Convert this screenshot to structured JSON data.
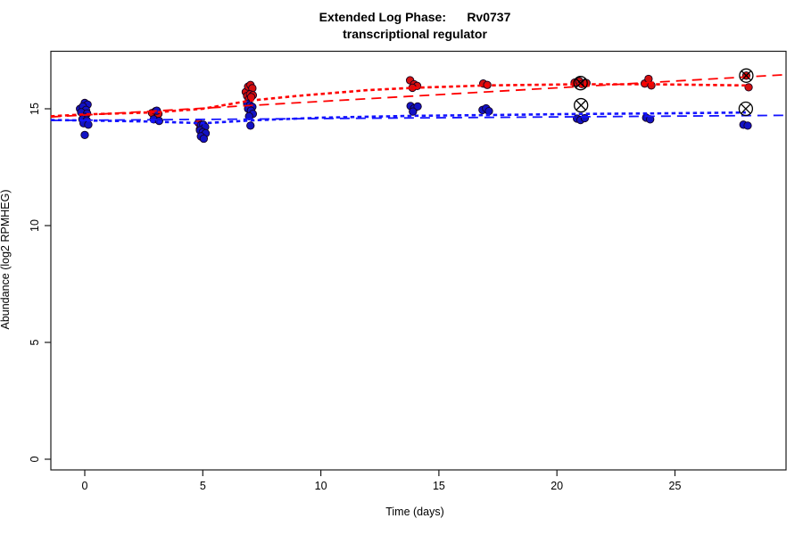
{
  "header": {
    "title_line1": "Extended Log Phase:      Rv0737",
    "title_line2": "transcriptional regulator"
  },
  "chart_data": {
    "type": "scatter",
    "title": "Extended Log Phase: Rv0737 transcriptional regulator",
    "xlabel": "Time  (days)",
    "ylabel": "Abundance  (log2 RPMHEG)",
    "xlim": [
      -1.44,
      29.7
    ],
    "ylim_shown": [
      0,
      16.8
    ],
    "x_ticks": [
      0,
      5,
      10,
      15,
      20,
      25
    ],
    "y_ticks": [
      0,
      5,
      10,
      15
    ],
    "grid": false,
    "legend": "none",
    "colors": {
      "red_point_fill": "#d40f0f",
      "blue_point_fill": "#1212c4",
      "point_stroke": "#14001e",
      "red_line": "#ff0000",
      "blue_line": "#1414ff",
      "axis": "#1a1a1a",
      "outlier_marker": "#000000"
    },
    "series": [
      {
        "name": "red-condition",
        "color_key": "red_point_fill",
        "points": [
          [
            2.85,
            14.82
          ],
          [
            3.0,
            14.9
          ],
          [
            3.12,
            14.78
          ],
          [
            4.82,
            14.4
          ],
          [
            4.88,
            14.12
          ],
          [
            6.82,
            15.72
          ],
          [
            6.92,
            15.95
          ],
          [
            7.02,
            16.02
          ],
          [
            7.1,
            15.88
          ],
          [
            6.88,
            15.55
          ],
          [
            7.0,
            15.62
          ],
          [
            7.12,
            15.58
          ],
          [
            6.95,
            15.4
          ],
          [
            7.05,
            15.5
          ],
          [
            13.78,
            16.22
          ],
          [
            13.95,
            16.05
          ],
          [
            14.08,
            15.98
          ],
          [
            13.88,
            15.9
          ],
          [
            16.88,
            16.08
          ],
          [
            17.05,
            16.02
          ],
          [
            20.75,
            16.12
          ],
          [
            20.95,
            16.18
          ],
          [
            21.05,
            16.06
          ],
          [
            21.25,
            16.1
          ],
          [
            23.72,
            16.08
          ],
          [
            23.88,
            16.28
          ],
          [
            24.0,
            16.0
          ],
          [
            28.02,
            16.42
          ],
          [
            28.12,
            15.92
          ]
        ]
      },
      {
        "name": "blue-condition",
        "color_key": "blue_point_fill",
        "points": [
          [
            -0.2,
            15.0
          ],
          [
            0.0,
            15.25
          ],
          [
            0.12,
            15.18
          ],
          [
            -0.08,
            15.1
          ],
          [
            0.05,
            14.95
          ],
          [
            -0.15,
            14.85
          ],
          [
            0.1,
            14.8
          ],
          [
            0.0,
            14.65
          ],
          [
            -0.1,
            14.55
          ],
          [
            0.08,
            14.5
          ],
          [
            -0.05,
            14.38
          ],
          [
            0.15,
            14.32
          ],
          [
            0.0,
            13.88
          ],
          [
            3.05,
            14.92
          ],
          [
            2.92,
            14.55
          ],
          [
            3.15,
            14.48
          ],
          [
            4.92,
            14.3
          ],
          [
            5.02,
            14.32
          ],
          [
            5.1,
            14.22
          ],
          [
            4.88,
            14.08
          ],
          [
            5.0,
            14.0
          ],
          [
            5.12,
            13.95
          ],
          [
            4.92,
            13.82
          ],
          [
            5.04,
            13.72
          ],
          [
            6.88,
            15.22
          ],
          [
            7.0,
            15.15
          ],
          [
            7.1,
            15.08
          ],
          [
            6.92,
            15.0
          ],
          [
            7.04,
            14.92
          ],
          [
            7.12,
            14.78
          ],
          [
            6.96,
            14.68
          ],
          [
            7.02,
            14.28
          ],
          [
            13.8,
            15.12
          ],
          [
            13.95,
            15.02
          ],
          [
            14.1,
            15.1
          ],
          [
            13.9,
            14.88
          ],
          [
            16.85,
            14.95
          ],
          [
            17.0,
            15.02
          ],
          [
            17.12,
            14.9
          ],
          [
            20.85,
            14.58
          ],
          [
            21.0,
            14.52
          ],
          [
            21.18,
            14.6
          ],
          [
            23.78,
            14.62
          ],
          [
            23.95,
            14.55
          ],
          [
            27.9,
            14.32
          ],
          [
            28.08,
            14.28
          ]
        ]
      }
    ],
    "circled_outliers": [
      {
        "series": "red-condition",
        "x": 21.0,
        "y": 16.1
      },
      {
        "series": "red-condition",
        "x": 28.02,
        "y": 16.42
      },
      {
        "series": "blue-condition",
        "x": 21.02,
        "y": 15.15
      },
      {
        "series": "blue-condition",
        "x": 28.0,
        "y": 15.0
      }
    ],
    "fit_lines": [
      {
        "name": "red-smooth-fit",
        "color_key": "red_line",
        "style": "short-dash",
        "points": [
          [
            -1.44,
            14.68
          ],
          [
            0,
            14.76
          ],
          [
            3,
            14.85
          ],
          [
            5,
            15.0
          ],
          [
            7,
            15.35
          ],
          [
            9,
            15.55
          ],
          [
            12,
            15.8
          ],
          [
            14,
            15.9
          ],
          [
            17,
            16.0
          ],
          [
            21,
            16.05
          ],
          [
            24,
            16.05
          ],
          [
            28,
            16.0
          ]
        ]
      },
      {
        "name": "red-linear-fit",
        "color_key": "red_line",
        "style": "long-dash",
        "points": [
          [
            -1.44,
            14.65
          ],
          [
            29.7,
            16.46
          ]
        ]
      },
      {
        "name": "blue-smooth-fit",
        "color_key": "blue_line",
        "style": "short-dash",
        "points": [
          [
            -1.44,
            14.52
          ],
          [
            0,
            14.5
          ],
          [
            3,
            14.45
          ],
          [
            5,
            14.38
          ],
          [
            7,
            14.5
          ],
          [
            10,
            14.62
          ],
          [
            14,
            14.7
          ],
          [
            17,
            14.73
          ],
          [
            21,
            14.78
          ],
          [
            24,
            14.8
          ],
          [
            28,
            14.84
          ]
        ]
      },
      {
        "name": "blue-linear-fit",
        "color_key": "blue_line",
        "style": "long-dash",
        "points": [
          [
            -1.44,
            14.5
          ],
          [
            29.7,
            14.72
          ]
        ]
      }
    ]
  }
}
